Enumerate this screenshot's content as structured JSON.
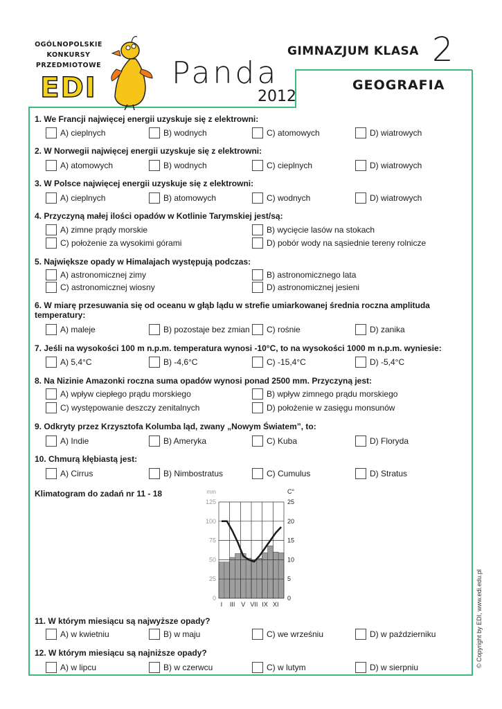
{
  "header": {
    "logo_lines": [
      "OGÓLNOPOLSKIE",
      "KONKURSY",
      "PRZEDMIOTOWE"
    ],
    "logo_brand": "EDI",
    "title": "Panda",
    "year": "2012",
    "level": "GIMNAZJUM KLASA",
    "level_number": "2",
    "subject": "GEOGRAFIA",
    "accent_color": "#3dba78"
  },
  "questions": [
    {
      "title": "1. We Francji najwięcej energii uzyskuje się z elektrowni:",
      "layout": "4col",
      "options": [
        "A) cieplnych",
        "B) wodnych",
        "C) atomowych",
        "D) wiatrowych"
      ]
    },
    {
      "title": "2. W Norwegii najwięcej energii uzyskuje się z elektrowni:",
      "layout": "4col",
      "options": [
        "A) atomowych",
        "B) wodnych",
        "C) cieplnych",
        "D) wiatrowych"
      ]
    },
    {
      "title": "3. W Polsce najwięcej energii uzyskuje się z elektrowni:",
      "layout": "4col",
      "options": [
        "A) cieplnych",
        "B) atomowych",
        "C) wodnych",
        "D) wiatrowych"
      ]
    },
    {
      "title": "4. Przyczyną małej ilości opadów w Kotlinie Tarymskiej jest/są:",
      "layout": "2col",
      "options": [
        "A) zimne prądy morskie",
        "B) wycięcie lasów na stokach",
        "C) położenie za wysokimi górami",
        "D) pobór wody na sąsiednie tereny rolnicze"
      ]
    },
    {
      "title": "5. Największe opady w Himalajach występują podczas:",
      "layout": "2col",
      "options": [
        "A) astronomicznej zimy",
        "B) astronomicznego lata",
        "C) astronomicznej wiosny",
        "D) astronomicznej jesieni"
      ]
    },
    {
      "title": "6. W miarę przesuwania się od oceanu w głąb lądu w strefie umiarkowanej średnia roczna amplituda temperatury:",
      "layout": "4col",
      "options": [
        "A) maleje",
        "B) pozostaje bez zmian",
        "C) rośnie",
        "D) zanika"
      ]
    },
    {
      "title": "7. Jeśli na wysokości 100 m n.p.m. temperatura wynosi -10°C, to na wysokości 1000 m n.p.m. wyniesie:",
      "layout": "4col",
      "options": [
        "A) 5,4°C",
        "B) -4,6°C",
        "C) -15,4°C",
        "D) -5,4°C"
      ]
    },
    {
      "title": "8. Na Nizinie Amazonki roczna suma opadów wynosi ponad 2500 mm. Przyczyną jest:",
      "layout": "2col",
      "options": [
        "A) wpływ ciepłego prądu morskiego",
        "B) wpływ zimnego prądu morskiego",
        "C) występowanie deszczy zenitalnych",
        "D) położenie w zasięgu monsunów"
      ]
    },
    {
      "title": "9. Odkryty przez Krzysztofa Kolumba ląd, zwany „Nowym Światem”, to:",
      "layout": "4col",
      "options": [
        "A) Indie",
        "B) Ameryka",
        "C) Kuba",
        "D) Floryda"
      ]
    },
    {
      "title": "10. Chmurą kłębiastą jest:",
      "layout": "4col",
      "options": [
        "A) Cirrus",
        "B) Nimbostratus",
        "C) Cumulus",
        "D) Stratus"
      ]
    },
    {
      "title": "11. W którym miesiącu są najwyższe opady?",
      "layout": "4col",
      "options": [
        "A) w kwietniu",
        "B) w maju",
        "C) we wrześniu",
        "D) w październiku"
      ]
    },
    {
      "title": "12. W którym miesiącu są najniższe opady?",
      "layout": "4col",
      "options": [
        "A) w lipcu",
        "B) w czerwcu",
        "C) w lutym",
        "D) w sierpniu"
      ]
    }
  ],
  "climatogram_label": "Klimatogram do zadań nr 11 - 18",
  "chart_data": {
    "type": "bar+line",
    "categories": [
      "I",
      "II",
      "III",
      "IV",
      "V",
      "VI",
      "VII",
      "VIII",
      "IX",
      "X",
      "XI",
      "XII"
    ],
    "x_tick_labels": [
      "I",
      "III",
      "V",
      "VII",
      "IX",
      "XI"
    ],
    "series": [
      {
        "type": "bar",
        "axis": "left",
        "values": [
          47,
          47,
          53,
          58,
          58,
          52,
          50,
          52,
          59,
          68,
          60,
          59
        ]
      },
      {
        "type": "line",
        "axis": "right",
        "values": [
          20,
          20,
          17.5,
          14.5,
          11,
          10,
          9.5,
          11,
          13,
          15,
          17,
          18.5
        ]
      }
    ],
    "left_axis": {
      "unit": "mm",
      "ticks": [
        "0",
        "25",
        "50",
        "75",
        "100",
        "125"
      ],
      "range": [
        0,
        125
      ]
    },
    "right_axis": {
      "unit": "C°",
      "ticks": [
        "0",
        "5",
        "10",
        "15",
        "20",
        "25"
      ],
      "range": [
        0,
        25
      ]
    },
    "grid": true,
    "bar_color": "#9e9e9e",
    "line_color": "#1a1a1a"
  },
  "copyright": "© Copyright by EDI, www.edi.edu.pl"
}
